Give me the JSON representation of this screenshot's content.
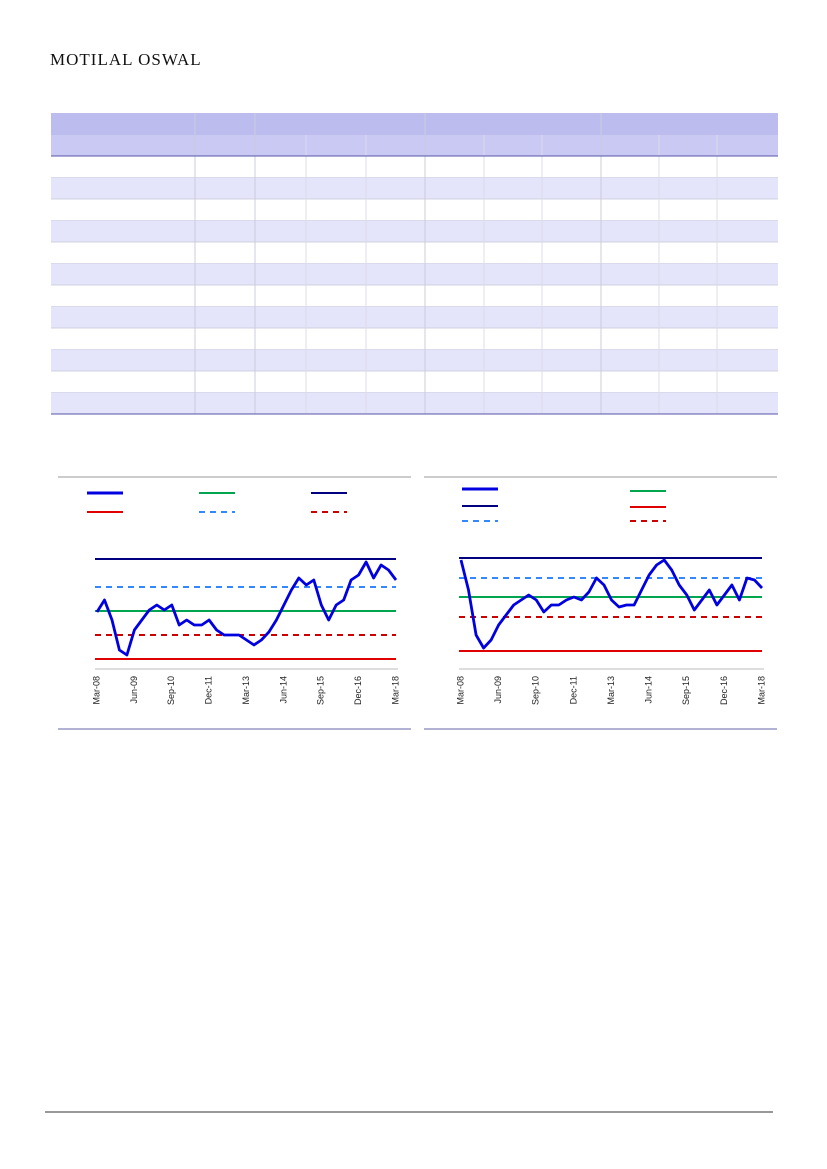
{
  "header": {
    "title": "MOTILAL OSWAL"
  },
  "chart_data": [
    {
      "type": "line",
      "categories": [
        "Mar-08",
        null,
        null,
        null,
        null,
        "Jun-09",
        null,
        null,
        null,
        null,
        "Sep-10",
        null,
        null,
        null,
        null,
        "Dec-11",
        null,
        null,
        null,
        null,
        "Mar-13",
        null,
        null,
        null,
        null,
        "Jun-14",
        null,
        null,
        null,
        null,
        "Sep-15",
        null,
        null,
        null,
        null,
        "Dec-16",
        null,
        null,
        null,
        null,
        "Mar-18"
      ],
      "ylim": [
        0,
        120
      ],
      "series": [
        {
          "color": "#0000e0",
          "values": [
            58,
            70,
            50,
            20,
            15,
            40,
            50,
            60,
            65,
            60,
            65,
            45,
            50,
            45,
            45,
            50,
            40,
            35,
            35,
            35,
            30,
            25,
            30,
            38,
            50,
            65,
            80,
            92,
            85,
            90,
            65,
            50,
            65,
            70,
            90,
            95,
            108,
            92,
            105,
            100,
            90
          ]
        }
      ],
      "reference_lines": [
        {
          "color": "#00a550",
          "dash": false,
          "value": 59
        },
        {
          "color": "#000080",
          "dash": false,
          "value": 111
        },
        {
          "color": "#e00000",
          "dash": false,
          "value": 11
        },
        {
          "color": "#3388ff",
          "dash": true,
          "value": 83
        },
        {
          "color": "#cc0000",
          "dash": true,
          "value": 35
        }
      ]
    },
    {
      "type": "line",
      "categories": [
        "Mar-08",
        null,
        null,
        null,
        null,
        "Jun-09",
        null,
        null,
        null,
        null,
        "Sep-10",
        null,
        null,
        null,
        null,
        "Dec-11",
        null,
        null,
        null,
        null,
        "Mar-13",
        null,
        null,
        null,
        null,
        "Jun-14",
        null,
        null,
        null,
        null,
        "Sep-15",
        null,
        null,
        null,
        null,
        "Dec-16",
        null,
        null,
        null,
        null,
        "Mar-18"
      ],
      "ylim": [
        0,
        120
      ],
      "series": [
        {
          "color": "#0000e0",
          "values": [
            110,
            80,
            35,
            22,
            30,
            45,
            55,
            65,
            70,
            75,
            70,
            58,
            65,
            65,
            70,
            73,
            70,
            78,
            92,
            85,
            70,
            63,
            65,
            65,
            80,
            95,
            105,
            110,
            100,
            85,
            75,
            60,
            70,
            80,
            65,
            75,
            85,
            70,
            92,
            90,
            82
          ]
        }
      ],
      "reference_lines": [
        {
          "color": "#00a550",
          "dash": false,
          "value": 73
        },
        {
          "color": "#000080",
          "dash": false,
          "value": 112
        },
        {
          "color": "#e00000",
          "dash": false,
          "value": 19
        },
        {
          "color": "#3388ff",
          "dash": true,
          "value": 92
        },
        {
          "color": "#cc0000",
          "dash": true,
          "value": 53
        }
      ]
    }
  ]
}
